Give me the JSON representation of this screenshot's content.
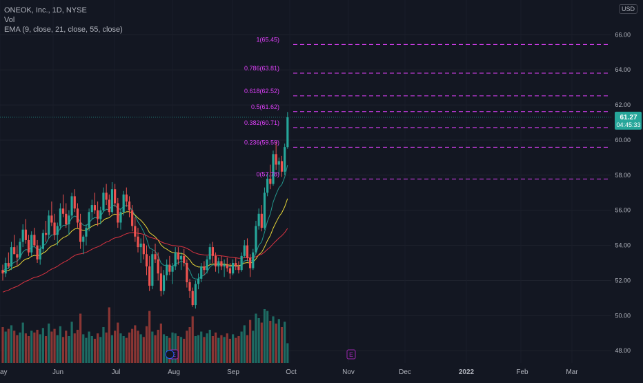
{
  "legend": {
    "title": "ONEOK, Inc., 1D, NYSE",
    "vol": "Vol",
    "ema": "EMA (9, close, 21, close, 55, close)"
  },
  "currency": "USD",
  "price_label": {
    "value": "61.27",
    "timer": "04:45:33",
    "color": "#26a69a"
  },
  "colors": {
    "background": "#131722",
    "up": "#26a69a",
    "down": "#ef5350",
    "vol_up": "#1e6b63",
    "vol_down": "#8b3634",
    "fib": "#e040fb",
    "ema9": "#26a69a",
    "ema21": "#ffeb3b",
    "ema55": "#f23645",
    "axis_text": "#b2b5be",
    "earnings": "#9c27b0"
  },
  "chart_data": {
    "type": "candlestick",
    "y_axis": {
      "min": 47.3,
      "max": 66.8,
      "ticks": [
        48,
        50,
        52,
        54,
        56,
        58,
        60,
        62,
        64,
        66
      ],
      "tick_labels": [
        "48.00",
        "50.00",
        "52.00",
        "54.00",
        "56.00",
        "58.00",
        "60.00",
        "62.00",
        "64.00",
        "66.00"
      ]
    },
    "x_axis": {
      "labels": [
        "ay",
        "Jun",
        "Jul",
        "Aug",
        "Sep",
        "Oct",
        "Nov",
        "Dec",
        "2022",
        "Feb",
        "Mar"
      ]
    },
    "fib_levels": [
      {
        "ratio": "1",
        "price": 65.45,
        "label": "1(65.45)"
      },
      {
        "ratio": "0.786",
        "price": 63.81,
        "label": "0.786(63.81)"
      },
      {
        "ratio": "0.618",
        "price": 62.52,
        "label": "0.618(62.52)"
      },
      {
        "ratio": "0.5",
        "price": 61.62,
        "label": "0.5(61.62)"
      },
      {
        "ratio": "0.382",
        "price": 60.71,
        "label": "0.382(60.71)"
      },
      {
        "ratio": "0.236",
        "price": 59.59,
        "label": "0.236(59.59)"
      },
      {
        "ratio": "0",
        "price": 57.78,
        "label": "0(57.78)"
      }
    ],
    "earnings_markers": [
      {
        "period": "Aug",
        "label": "E"
      },
      {
        "period": "Nov",
        "label": "E"
      }
    ],
    "candles": [
      [
        52.6,
        52.9,
        52.0,
        52.4
      ],
      [
        52.4,
        53.3,
        52.2,
        53.0
      ],
      [
        53.0,
        53.6,
        52.7,
        52.8
      ],
      [
        52.8,
        54.2,
        52.6,
        53.9
      ],
      [
        53.9,
        54.6,
        53.5,
        53.5
      ],
      [
        53.5,
        54.0,
        52.8,
        53.3
      ],
      [
        53.3,
        54.4,
        53.2,
        54.2
      ],
      [
        54.2,
        55.2,
        53.9,
        54.9
      ],
      [
        54.9,
        55.5,
        54.1,
        54.3
      ],
      [
        54.3,
        54.6,
        53.4,
        53.6
      ],
      [
        53.6,
        54.8,
        53.4,
        54.6
      ],
      [
        54.6,
        55.0,
        53.9,
        54.0
      ],
      [
        54.0,
        54.3,
        53.0,
        53.2
      ],
      [
        53.2,
        54.0,
        52.9,
        53.8
      ],
      [
        53.8,
        54.9,
        53.6,
        54.7
      ],
      [
        54.7,
        55.4,
        54.2,
        54.6
      ],
      [
        54.6,
        56.0,
        54.4,
        55.7
      ],
      [
        55.7,
        56.5,
        55.1,
        55.3
      ],
      [
        55.3,
        55.8,
        54.3,
        54.6
      ],
      [
        54.6,
        55.3,
        54.0,
        55.1
      ],
      [
        55.1,
        56.4,
        54.9,
        56.1
      ],
      [
        56.1,
        56.9,
        55.6,
        55.8
      ],
      [
        55.8,
        56.4,
        55.0,
        55.2
      ],
      [
        55.2,
        56.0,
        54.6,
        55.7
      ],
      [
        55.7,
        57.0,
        55.5,
        56.8
      ],
      [
        56.8,
        57.2,
        55.9,
        56.1
      ],
      [
        56.1,
        56.4,
        55.0,
        55.3
      ],
      [
        55.3,
        55.8,
        53.8,
        54.2
      ],
      [
        54.2,
        54.6,
        53.5,
        54.5
      ],
      [
        54.5,
        55.2,
        54.0,
        55.0
      ],
      [
        55.0,
        56.1,
        54.8,
        55.9
      ],
      [
        55.9,
        56.6,
        55.5,
        56.3
      ],
      [
        56.3,
        57.0,
        55.8,
        56.0
      ],
      [
        56.0,
        56.5,
        55.1,
        55.5
      ],
      [
        55.5,
        56.2,
        55.2,
        56.0
      ],
      [
        56.0,
        57.3,
        55.9,
        57.0
      ],
      [
        57.0,
        57.5,
        56.3,
        56.6
      ],
      [
        56.6,
        56.9,
        55.7,
        55.9
      ],
      [
        55.9,
        57.6,
        55.8,
        57.2
      ],
      [
        57.2,
        57.5,
        56.2,
        56.4
      ],
      [
        56.4,
        56.7,
        55.0,
        55.3
      ],
      [
        55.3,
        56.1,
        54.9,
        55.9
      ],
      [
        55.9,
        57.1,
        55.7,
        56.9
      ],
      [
        56.9,
        57.3,
        56.2,
        56.5
      ],
      [
        56.5,
        56.8,
        55.6,
        56.0
      ],
      [
        56.0,
        56.3,
        54.8,
        55.1
      ],
      [
        55.1,
        55.6,
        54.2,
        54.5
      ],
      [
        54.5,
        55.0,
        53.6,
        53.9
      ],
      [
        53.9,
        54.4,
        53.0,
        54.1
      ],
      [
        54.1,
        54.6,
        53.2,
        53.5
      ],
      [
        53.5,
        54.0,
        52.3,
        52.8
      ],
      [
        52.8,
        53.4,
        51.4,
        51.7
      ],
      [
        51.7,
        53.7,
        51.5,
        53.5
      ],
      [
        53.5,
        54.1,
        53.0,
        53.2
      ],
      [
        53.2,
        53.6,
        52.0,
        52.4
      ],
      [
        52.4,
        52.8,
        51.1,
        51.4
      ],
      [
        51.4,
        52.6,
        51.2,
        52.3
      ],
      [
        52.3,
        53.2,
        52.0,
        52.9
      ],
      [
        52.9,
        53.4,
        52.3,
        52.5
      ],
      [
        52.5,
        53.0,
        51.8,
        52.8
      ],
      [
        52.8,
        53.9,
        52.6,
        53.6
      ],
      [
        53.6,
        53.9,
        52.9,
        53.2
      ],
      [
        53.2,
        53.6,
        52.6,
        53.4
      ],
      [
        53.4,
        53.8,
        52.8,
        53.0
      ],
      [
        53.0,
        53.2,
        51.6,
        51.9
      ],
      [
        51.9,
        52.1,
        51.0,
        51.4
      ],
      [
        51.4,
        51.6,
        50.5,
        50.6
      ],
      [
        50.6,
        52.0,
        50.4,
        51.8
      ],
      [
        51.8,
        52.4,
        51.5,
        52.1
      ],
      [
        52.1,
        53.0,
        51.9,
        52.8
      ],
      [
        52.8,
        53.1,
        52.3,
        52.6
      ],
      [
        52.6,
        53.4,
        52.4,
        53.2
      ],
      [
        53.2,
        54.1,
        52.9,
        53.9
      ],
      [
        53.9,
        54.2,
        53.0,
        53.4
      ],
      [
        53.4,
        53.6,
        52.5,
        52.8
      ],
      [
        52.8,
        53.3,
        52.4,
        53.1
      ],
      [
        53.1,
        53.4,
        52.6,
        52.8
      ],
      [
        52.8,
        53.2,
        52.2,
        52.9
      ],
      [
        52.9,
        53.3,
        52.5,
        52.7
      ],
      [
        52.7,
        53.0,
        52.1,
        52.4
      ],
      [
        52.4,
        53.2,
        52.3,
        53.0
      ],
      [
        53.0,
        53.3,
        52.6,
        52.8
      ],
      [
        52.8,
        53.1,
        52.4,
        52.6
      ],
      [
        52.6,
        53.6,
        52.5,
        53.4
      ],
      [
        53.4,
        54.3,
        53.3,
        54.0
      ],
      [
        54.0,
        54.4,
        53.1,
        53.3
      ],
      [
        53.3,
        53.5,
        52.2,
        52.7
      ],
      [
        52.7,
        53.8,
        52.6,
        53.6
      ],
      [
        53.6,
        55.4,
        53.5,
        55.1
      ],
      [
        55.1,
        56.1,
        54.9,
        55.8
      ],
      [
        55.8,
        56.3,
        54.8,
        55.0
      ],
      [
        55.0,
        57.3,
        54.9,
        57.0
      ],
      [
        57.0,
        58.1,
        56.8,
        57.8
      ],
      [
        57.8,
        58.6,
        57.2,
        57.5
      ],
      [
        57.5,
        59.4,
        57.4,
        59.2
      ],
      [
        59.2,
        59.9,
        58.3,
        58.6
      ],
      [
        58.6,
        59.0,
        58.0,
        58.8
      ],
      [
        58.8,
        59.1,
        57.9,
        58.2
      ],
      [
        58.2,
        59.8,
        58.0,
        59.6
      ],
      [
        59.6,
        61.6,
        59.5,
        61.3
      ]
    ],
    "volumes": [
      0.4,
      0.35,
      0.38,
      0.42,
      0.36,
      0.31,
      0.34,
      0.45,
      0.33,
      0.3,
      0.36,
      0.34,
      0.37,
      0.32,
      0.39,
      0.3,
      0.44,
      0.35,
      0.38,
      0.31,
      0.41,
      0.29,
      0.36,
      0.3,
      0.46,
      0.33,
      0.37,
      0.55,
      0.32,
      0.28,
      0.35,
      0.3,
      0.27,
      0.33,
      0.29,
      0.4,
      0.34,
      0.62,
      0.31,
      0.36,
      0.45,
      0.33,
      0.3,
      0.28,
      0.34,
      0.38,
      0.42,
      0.36,
      0.32,
      0.29,
      0.41,
      0.58,
      0.35,
      0.31,
      0.37,
      0.44,
      0.32,
      0.3,
      0.28,
      0.34,
      0.33,
      0.3,
      0.29,
      0.27,
      0.36,
      0.4,
      0.52,
      0.3,
      0.31,
      0.35,
      0.29,
      0.33,
      0.37,
      0.3,
      0.34,
      0.28,
      0.31,
      0.29,
      0.33,
      0.27,
      0.32,
      0.28,
      0.3,
      0.35,
      0.42,
      0.31,
      0.48,
      0.36,
      0.55,
      0.5,
      0.45,
      0.6,
      0.58,
      0.47,
      0.52,
      0.44,
      0.49,
      0.4,
      0.46,
      0.22
    ]
  }
}
